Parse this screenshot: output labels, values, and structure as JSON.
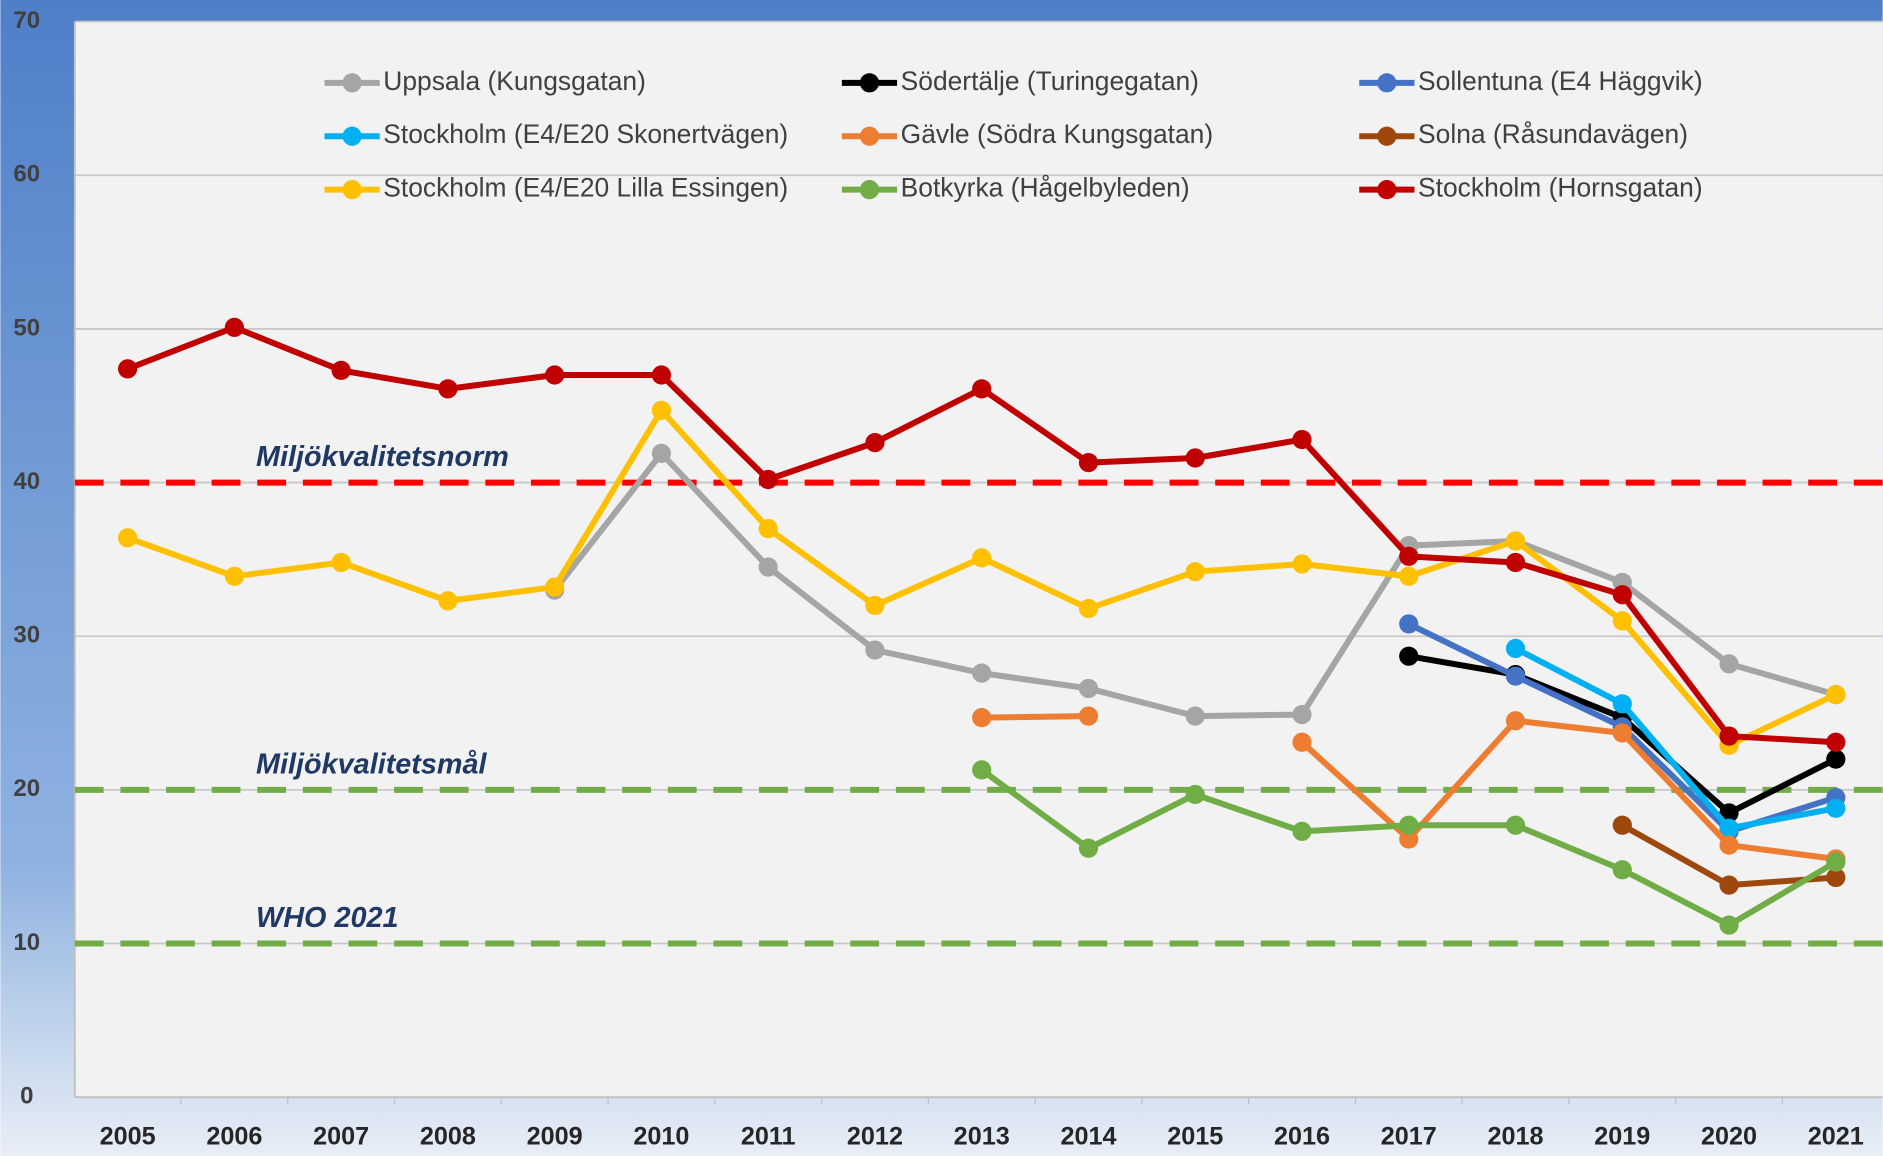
{
  "chart_data": {
    "type": "line",
    "categories": [
      "2005",
      "2006",
      "2007",
      "2008",
      "2009",
      "2010",
      "2011",
      "2012",
      "2013",
      "2014",
      "2015",
      "2016",
      "2017",
      "2018",
      "2019",
      "2020",
      "2021"
    ],
    "ylim": [
      0,
      70
    ],
    "yticks": [
      0,
      10,
      20,
      30,
      40,
      50,
      60,
      70
    ],
    "grid": true,
    "series": [
      {
        "name": "Uppsala (Kungsgatan)",
        "color": "#a5a5a5",
        "values": [
          null,
          null,
          null,
          null,
          33.0,
          41.9,
          34.5,
          29.1,
          27.6,
          26.6,
          24.8,
          24.9,
          35.9,
          36.2,
          33.5,
          28.2,
          26.2
        ]
      },
      {
        "name": "Södertälje (Turingegatan)",
        "color": "#000000",
        "values": [
          null,
          null,
          null,
          null,
          null,
          null,
          null,
          null,
          null,
          null,
          null,
          null,
          28.7,
          27.5,
          24.7,
          18.5,
          22.0
        ]
      },
      {
        "name": "Sollentuna (E4 Häggvik)",
        "color": "#4472c4",
        "values": [
          null,
          null,
          null,
          null,
          null,
          null,
          null,
          null,
          null,
          null,
          null,
          null,
          30.8,
          27.4,
          24.1,
          17.3,
          19.5
        ]
      },
      {
        "name": "Stockholm (E4/E20 Skonertvägen)",
        "color": "#00b0f0",
        "values": [
          null,
          null,
          null,
          null,
          null,
          null,
          null,
          null,
          null,
          null,
          null,
          null,
          null,
          29.2,
          25.6,
          17.5,
          18.8
        ]
      },
      {
        "name": "Gävle (Södra Kungsgatan)",
        "color": "#ed7d31",
        "values": [
          null,
          null,
          null,
          null,
          null,
          null,
          null,
          null,
          24.7,
          24.8,
          null,
          23.1,
          16.8,
          24.5,
          23.7,
          16.4,
          15.5
        ]
      },
      {
        "name": "Solna (Råsundavägen)",
        "color": "#9e480e",
        "values": [
          null,
          null,
          null,
          null,
          null,
          null,
          null,
          null,
          null,
          null,
          null,
          null,
          null,
          null,
          17.7,
          13.8,
          14.3
        ]
      },
      {
        "name": "Stockholm (E4/E20 Lilla Essingen)",
        "color": "#ffc000",
        "values": [
          36.4,
          33.9,
          34.8,
          32.3,
          33.2,
          44.7,
          37.0,
          32.0,
          35.1,
          31.8,
          34.2,
          34.7,
          33.9,
          36.2,
          31.0,
          22.9,
          26.2
        ]
      },
      {
        "name": "Botkyrka (Hågelbyleden)",
        "color": "#70ad47",
        "values": [
          null,
          null,
          null,
          null,
          null,
          null,
          null,
          null,
          21.3,
          16.2,
          19.7,
          17.3,
          17.7,
          17.7,
          14.8,
          11.2,
          15.3
        ]
      },
      {
        "name": "Stockholm (Hornsgatan)",
        "color": "#c00000",
        "values": [
          47.4,
          50.1,
          47.3,
          46.1,
          47.0,
          47.0,
          40.2,
          42.6,
          46.1,
          41.3,
          41.6,
          42.8,
          35.2,
          34.8,
          32.7,
          23.5,
          23.1
        ]
      }
    ],
    "reference_lines": [
      {
        "label": "Miljökvalitetsnorm",
        "value": 40,
        "color": "#ff0000"
      },
      {
        "label": "Miljökvalitetsmål",
        "value": 20,
        "color": "#70ad47"
      },
      {
        "label": "WHO 2021",
        "value": 10,
        "color": "#70ad47"
      }
    ]
  }
}
